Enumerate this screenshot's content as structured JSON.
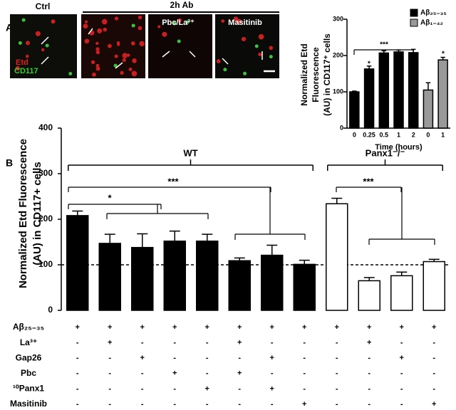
{
  "panel_labels": [
    "A",
    "B"
  ],
  "images": {
    "group_label": "2h Ab",
    "panels": [
      {
        "label": "Ctrl",
        "stains": [
          "Etd",
          "CD117"
        ]
      },
      {
        "label": "Pbc/La³⁺"
      },
      {
        "label": "Masitinib"
      }
    ]
  },
  "chart_data": [
    {
      "type": "bar",
      "ylabel": [
        "Normalized Etd",
        "Fluorescence",
        "(AU) in CD117⁺ cells"
      ],
      "xlabel": "Time (hours)",
      "categories": [
        "0",
        "0.25",
        "0.5",
        "1",
        "2",
        "0",
        "1"
      ],
      "series": [
        {
          "name": "Aβ₂₅₋₃₅",
          "color": "#000000",
          "values": [
            100,
            163,
            207,
            210,
            208,
            null,
            null
          ],
          "errors": [
            2,
            8,
            6,
            5,
            9,
            null,
            null
          ]
        },
        {
          "name": "Aβ₁₋₄₂",
          "color": "#999999",
          "values": [
            null,
            null,
            null,
            null,
            null,
            105,
            188
          ],
          "errors": [
            null,
            null,
            null,
            null,
            null,
            20,
            7
          ]
        }
      ],
      "ylim": [
        0,
        300
      ],
      "yticks": [
        0,
        100,
        200,
        300
      ],
      "annotations": [
        "*",
        "***",
        "*"
      ]
    },
    {
      "type": "bar",
      "ylabel": [
        "Normalized Etd Fluorescence",
        "(AU) in CD117+ cells"
      ],
      "series": [
        {
          "name": "WT",
          "color": "#000000",
          "values": [
            208,
            147,
            138,
            152,
            152,
            109,
            121,
            101,
            null,
            null,
            null,
            null
          ],
          "errors": [
            10,
            20,
            30,
            22,
            15,
            6,
            22,
            9,
            null,
            null,
            null,
            null
          ]
        },
        {
          "name": "Panx1⁻/⁻",
          "color": "#ffffff",
          "values": [
            null,
            null,
            null,
            null,
            null,
            null,
            null,
            null,
            234,
            65,
            76,
            107
          ],
          "errors": [
            null,
            null,
            null,
            null,
            null,
            null,
            null,
            null,
            12,
            7,
            8,
            5
          ]
        }
      ],
      "ylim": [
        0,
        400
      ],
      "yticks": [
        0,
        100,
        200,
        300,
        400
      ],
      "reference_line": 100,
      "annotations": [
        "*",
        "***",
        "***"
      ],
      "condition_table": {
        "rows": [
          {
            "label": "Aβ₂₅₋₃₅",
            "cells": [
              "+",
              "+",
              "+",
              "+",
              "+",
              "+",
              "+",
              "+",
              "+",
              "+",
              "+",
              "+"
            ]
          },
          {
            "label": "La³⁺",
            "cells": [
              "-",
              "+",
              "-",
              "-",
              "-",
              "+",
              "-",
              "-",
              "-",
              "+",
              "-",
              "-"
            ]
          },
          {
            "label": "Gap26",
            "cells": [
              "-",
              "-",
              "+",
              "-",
              "-",
              "-",
              "+",
              "-",
              "-",
              "-",
              "+",
              "-"
            ]
          },
          {
            "label": "Pbc",
            "cells": [
              "-",
              "-",
              "-",
              "+",
              "-",
              "+",
              "-",
              "-",
              "-",
              "-",
              "-",
              "-"
            ]
          },
          {
            "label": "¹⁰Panx1",
            "cells": [
              "-",
              "-",
              "-",
              "-",
              "+",
              "-",
              "+",
              "-",
              "-",
              "-",
              "-",
              "-"
            ]
          },
          {
            "label": "Masitinib",
            "cells": [
              "-",
              "-",
              "-",
              "-",
              "-",
              "-",
              "-",
              "+",
              "-",
              "-",
              "-",
              "+"
            ]
          }
        ]
      }
    }
  ]
}
